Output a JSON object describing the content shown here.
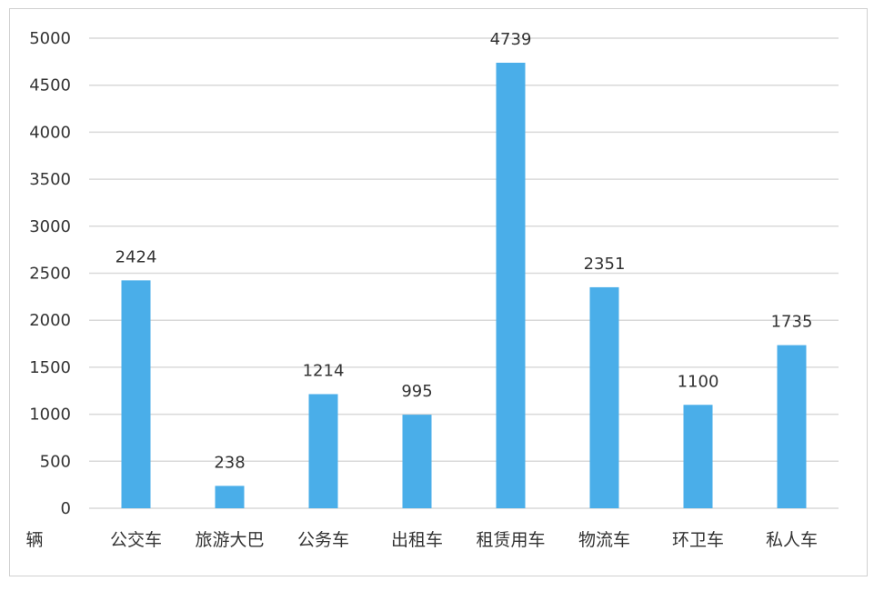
{
  "chart_data": {
    "type": "bar",
    "title": "",
    "xlabel": "",
    "ylabel": "",
    "unit_label": "辆",
    "categories": [
      "公交车",
      "旅游大巴",
      "公务车",
      "出租车",
      "租赁用车",
      "物流车",
      "环卫车",
      "私人车"
    ],
    "values": [
      2424,
      238,
      1214,
      995,
      4739,
      2351,
      1100,
      1735
    ],
    "ylim": [
      0,
      5000
    ],
    "yticks": [
      0,
      500,
      1000,
      1500,
      2000,
      2500,
      3000,
      3500,
      4000,
      4500,
      5000
    ],
    "grid": true,
    "legend": "none",
    "bar_color": "#4aaee9",
    "data_labels": true
  }
}
